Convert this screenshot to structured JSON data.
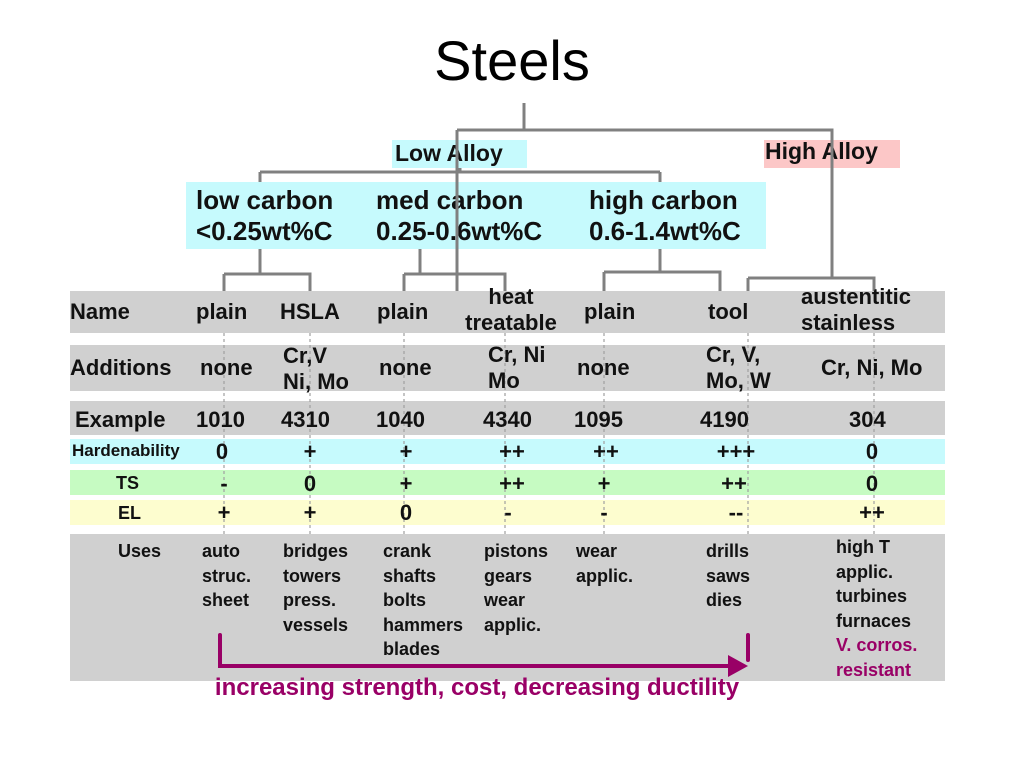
{
  "title": "Steels",
  "categories": {
    "low_alloy": "Low Alloy",
    "high_alloy": "High Alloy"
  },
  "carbon": [
    {
      "name": "low carbon",
      "range": "<0.25wt%C"
    },
    {
      "name": "med carbon",
      "range": "0.25-0.6wt%C"
    },
    {
      "name": "high carbon",
      "range": "0.6-1.4wt%C"
    }
  ],
  "table": {
    "headers": {
      "name": "Name",
      "additions": "Additions",
      "example": "Example",
      "hardenability": "Hardenability",
      "ts": "TS",
      "el": "EL",
      "uses": "Uses"
    },
    "columns": [
      {
        "name": "plain",
        "additions": "none",
        "example": "1010",
        "hardenability": "0",
        "ts": "-",
        "el": "+",
        "uses": "auto\nstruc.\nsheet"
      },
      {
        "name": "HSLA",
        "additions": "Cr,V\nNi, Mo",
        "example": "4310",
        "hardenability": "+",
        "ts": "0",
        "el": "+",
        "uses": "bridges\ntowers\npress.\nvessels"
      },
      {
        "name": "plain",
        "additions": "none",
        "example": "1040",
        "hardenability": "+",
        "ts": "+",
        "el": "0",
        "uses": "crank\nshafts\nbolts\nhammers\nblades"
      },
      {
        "name": "heat\ntreatable",
        "additions": "Cr, Ni\nMo",
        "example": "4340",
        "hardenability": "++",
        "ts": "++",
        "el": "-",
        "uses": "pistons\ngears\nwear\napplic."
      },
      {
        "name": "plain",
        "additions": "none",
        "example": "1095",
        "hardenability": "++",
        "ts": "+",
        "el": "-",
        "uses": "wear\napplic."
      },
      {
        "name": "tool",
        "additions": "Cr, V,\nMo, W",
        "example": "4190",
        "hardenability": "+++",
        "ts": "++",
        "el": "--",
        "uses": "drills\nsaws\ndies"
      },
      {
        "name": "austentitic\nstainless",
        "additions": "Cr, Ni, Mo",
        "example": "304",
        "hardenability": "0",
        "ts": "0",
        "el": "++",
        "uses": "high T\napplic.\nturbines\nfurnaces",
        "uses_extra": "V. corros.\nresistant"
      }
    ]
  },
  "trend_label": "increasing strength, cost, decreasing ductility",
  "colors": {
    "low_alloy_bg": "#c6fafd",
    "high_alloy_bg": "#fcc7c7",
    "table_gray": "#d0d0d0",
    "hardenability_bg": "#c6fafd",
    "ts_bg": "#c6fbc2",
    "el_bg": "#fdfdcf",
    "arrow": "#990066",
    "connector": "#808080"
  }
}
